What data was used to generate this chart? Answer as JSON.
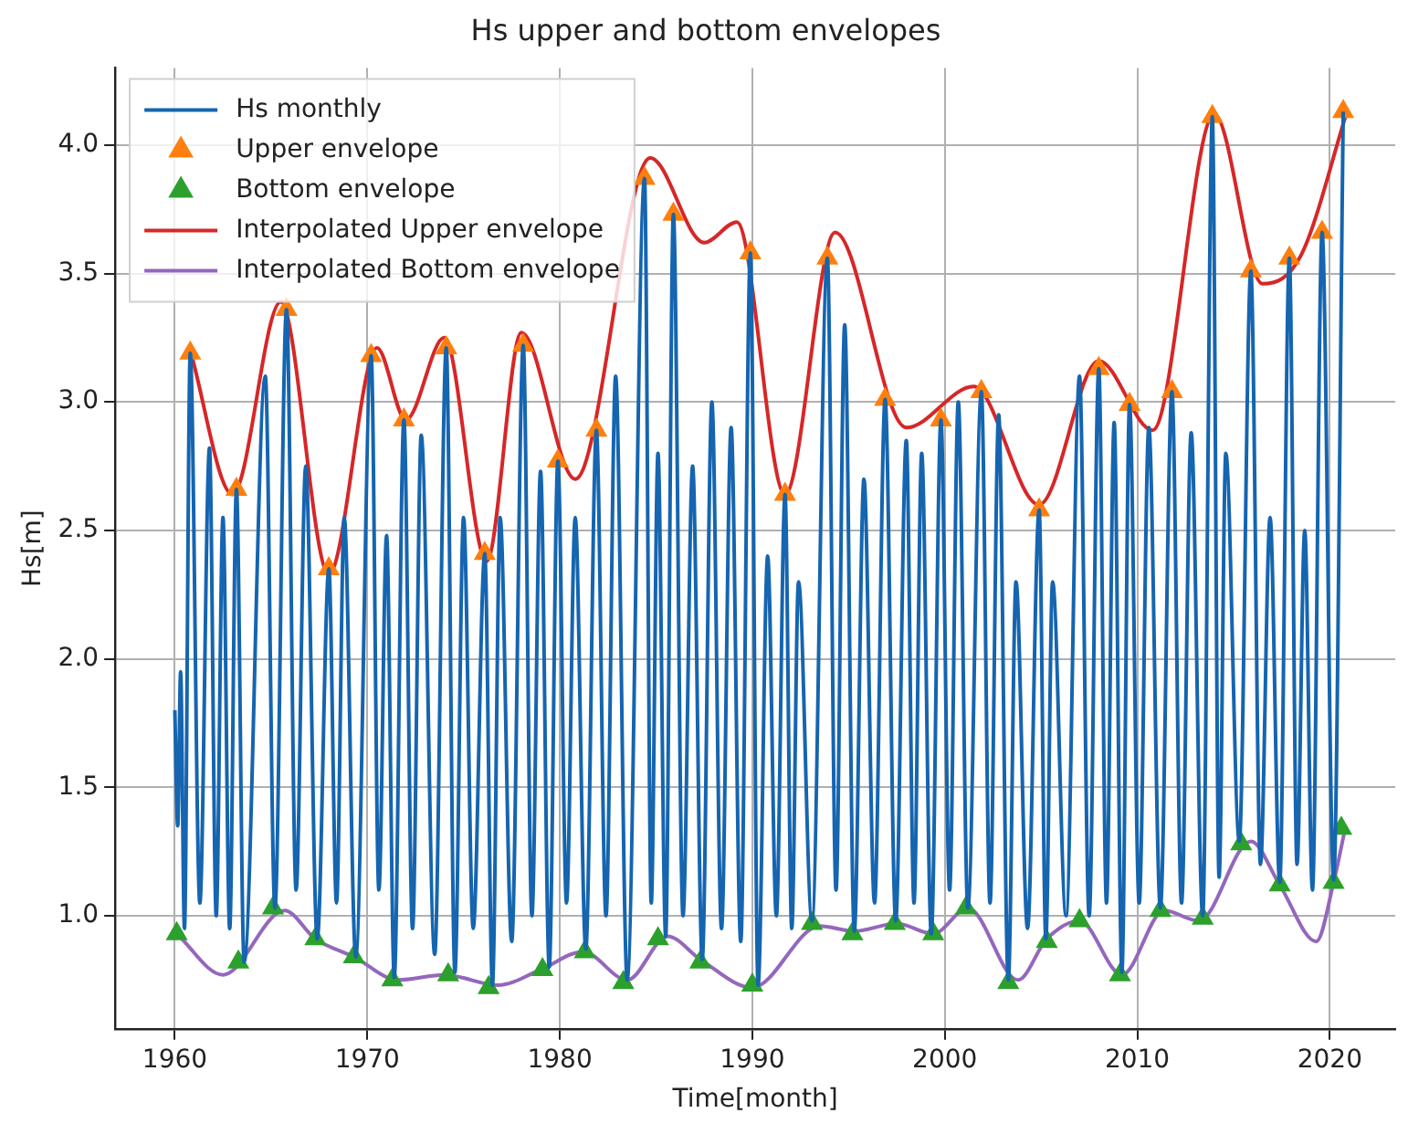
{
  "chart_data": {
    "type": "line",
    "title": "Hs upper and bottom envelopes",
    "xlabel": "Time[month]",
    "ylabel": "Hs[m]",
    "xlim": [
      1956.9,
      2023.4
    ],
    "ylim": [
      0.56,
      4.3
    ],
    "xticks": [
      1960,
      1970,
      1980,
      1990,
      2000,
      2010,
      2020
    ],
    "yticks": [
      {
        "value": 1,
        "label": "1.0"
      },
      {
        "value": 1.5,
        "label": "1.5"
      },
      {
        "value": 2,
        "label": "2.0"
      },
      {
        "value": 2.5,
        "label": "2.5"
      },
      {
        "value": 3,
        "label": "3.0"
      },
      {
        "value": 3.5,
        "label": "3.5"
      },
      {
        "value": 4,
        "label": "4.0"
      }
    ],
    "grid": true,
    "legend": "top left",
    "series": [
      {
        "name": "Hs monthly",
        "color": "#1565b0",
        "marker": "none",
        "x": [
          1960.0,
          1960.15,
          1960.3,
          1960.5,
          1960.8,
          1961.3,
          1961.8,
          1962.15,
          1962.5,
          1962.85,
          1963.2,
          1963.6,
          1964.7,
          1965.2,
          1965.8,
          1966.3,
          1966.8,
          1967.4,
          1968.0,
          1968.4,
          1968.8,
          1969.4,
          1970.2,
          1970.6,
          1971.0,
          1971.4,
          1971.9,
          1972.35,
          1972.8,
          1973.5,
          1974.1,
          1974.55,
          1975.0,
          1975.5,
          1976.1,
          1976.5,
          1976.9,
          1977.5,
          1978.1,
          1978.55,
          1979.0,
          1979.45,
          1979.9,
          1980.35,
          1980.8,
          1981.35,
          1981.9,
          1982.4,
          1982.9,
          1983.5,
          1984.4,
          1984.75,
          1985.1,
          1985.5,
          1985.9,
          1986.4,
          1986.9,
          1987.4,
          1987.9,
          1988.4,
          1988.9,
          1989.4,
          1989.9,
          1990.3,
          1990.8,
          1991.25,
          1991.7,
          1992.05,
          1992.4,
          1993.1,
          1993.9,
          1994.35,
          1994.8,
          1995.3,
          1995.8,
          1996.35,
          1996.9,
          1997.45,
          1998.0,
          1998.4,
          1998.8,
          1999.3,
          1999.8,
          2000.25,
          2000.7,
          2001.2,
          2001.9,
          2002.35,
          2002.8,
          2003.3,
          2003.7,
          2004.3,
          2004.9,
          2005.25,
          2005.6,
          2006.3,
          2007.0,
          2007.5,
          2008.0,
          2008.4,
          2008.8,
          2009.2,
          2009.6,
          2010.1,
          2010.6,
          2011.2,
          2011.8,
          2012.3,
          2012.8,
          2013.4,
          2013.9,
          2014.25,
          2014.6,
          2015.3,
          2015.9,
          2016.4,
          2016.9,
          2017.4,
          2017.9,
          2018.3,
          2018.7,
          2019.1,
          2019.6,
          2020.2,
          2020.7
        ],
        "values": [
          1.8,
          1.35,
          1.95,
          0.95,
          3.19,
          1.05,
          2.82,
          1.0,
          2.55,
          0.95,
          2.66,
          0.82,
          3.1,
          1.03,
          3.36,
          1.1,
          2.75,
          0.91,
          2.35,
          1.05,
          2.55,
          0.84,
          3.18,
          1.1,
          2.48,
          0.76,
          2.93,
          0.95,
          2.87,
          0.85,
          3.21,
          0.78,
          2.55,
          0.95,
          2.41,
          0.73,
          2.55,
          0.9,
          3.22,
          1.0,
          2.73,
          0.8,
          2.77,
          1.05,
          2.55,
          0.87,
          2.89,
          1.0,
          3.1,
          0.75,
          3.87,
          1.05,
          2.8,
          0.92,
          3.73,
          1.0,
          2.75,
          0.83,
          3.0,
          0.95,
          2.9,
          0.9,
          3.58,
          0.73,
          2.4,
          1.0,
          2.64,
          0.95,
          2.3,
          0.98,
          3.56,
          1.1,
          3.3,
          0.94,
          2.7,
          1.05,
          3.01,
          0.98,
          2.85,
          1.05,
          2.8,
          0.93,
          2.93,
          1.1,
          3.0,
          1.03,
          3.04,
          1.05,
          2.95,
          0.75,
          2.3,
          0.95,
          2.58,
          0.91,
          2.3,
          1.0,
          3.1,
          1.0,
          3.13,
          1.05,
          2.92,
          0.78,
          2.99,
          1.05,
          2.9,
          1.03,
          3.04,
          1.05,
          2.88,
          1.0,
          4.11,
          1.15,
          2.8,
          1.29,
          3.51,
          1.2,
          2.55,
          1.13,
          3.56,
          1.2,
          2.5,
          1.1,
          3.66,
          1.14,
          4.13
        ]
      },
      {
        "name": "Upper envelope",
        "type": "scatter",
        "color": "#ff7f0e",
        "marker": "triangle",
        "x": [
          1960.8,
          1963.2,
          1965.8,
          1968.0,
          1970.2,
          1971.9,
          1974.1,
          1976.1,
          1978.1,
          1979.9,
          1981.9,
          1984.4,
          1985.9,
          1989.9,
          1991.7,
          1993.9,
          1996.9,
          1999.8,
          2001.9,
          2004.9,
          2008.0,
          2009.6,
          2011.8,
          2013.9,
          2015.9,
          2017.9,
          2019.6,
          2020.7
        ],
        "values": [
          3.19,
          2.66,
          3.36,
          2.35,
          3.18,
          2.93,
          3.21,
          2.41,
          3.22,
          2.77,
          2.89,
          3.87,
          3.73,
          3.58,
          2.64,
          3.56,
          3.01,
          2.93,
          3.04,
          2.58,
          3.13,
          2.99,
          3.04,
          4.11,
          3.51,
          3.56,
          3.66,
          4.13
        ]
      },
      {
        "name": "Bottom envelope",
        "type": "scatter",
        "color": "#2ca02c",
        "marker": "triangle",
        "x": [
          1960.1,
          1963.3,
          1965.1,
          1967.3,
          1969.3,
          1971.3,
          1974.2,
          1976.3,
          1979.1,
          1981.3,
          1983.3,
          1985.1,
          1987.3,
          1990.0,
          1993.1,
          1995.2,
          1997.4,
          1999.4,
          2001.1,
          2003.3,
          2005.3,
          2007.0,
          2009.1,
          2011.2,
          2013.4,
          2015.4,
          2017.4,
          2020.2,
          2020.6
        ],
        "values": [
          0.93,
          0.82,
          1.03,
          0.91,
          0.84,
          0.75,
          0.77,
          0.72,
          0.79,
          0.86,
          0.74,
          0.91,
          0.82,
          0.73,
          0.97,
          0.93,
          0.97,
          0.93,
          1.03,
          0.74,
          0.9,
          0.98,
          0.77,
          1.02,
          0.99,
          1.28,
          1.12,
          1.13,
          1.34
        ]
      },
      {
        "name": "Interpolated Upper envelope",
        "color": "#d62728",
        "marker": "none",
        "x": [
          1960.8,
          1963.0,
          1965.5,
          1968.0,
          1970.5,
          1972.0,
          1974.0,
          1976.2,
          1978.0,
          1980.8,
          1984.7,
          1987.5,
          1989.2,
          1991.7,
          1994.3,
          1998.0,
          2001.5,
          2004.9,
          2008.0,
          2010.8,
          2014.0,
          2016.5,
          2018.5,
          2020.9
        ],
        "values": [
          3.2,
          2.64,
          3.39,
          2.33,
          3.21,
          2.93,
          3.25,
          2.38,
          3.27,
          2.7,
          3.95,
          3.62,
          3.7,
          2.64,
          3.66,
          2.9,
          3.06,
          2.6,
          3.16,
          2.89,
          4.12,
          3.46,
          3.57,
          4.13
        ]
      },
      {
        "name": "Interpolated Bottom envelope",
        "color": "#9467bd",
        "marker": "none",
        "x": [
          1960.1,
          1962.5,
          1965.7,
          1967.3,
          1969.3,
          1971.6,
          1974.0,
          1976.8,
          1979.0,
          1981.2,
          1983.5,
          1985.6,
          1987.3,
          1990.0,
          1993.5,
          1995.3,
          1997.5,
          1999.4,
          2001.2,
          2003.8,
          2005.3,
          2007.0,
          2009.2,
          2011.4,
          2013.2,
          2015.9,
          2017.4,
          2019.3,
          2020.2,
          2020.8
        ],
        "values": [
          0.93,
          0.77,
          1.02,
          0.91,
          0.84,
          0.75,
          0.77,
          0.73,
          0.79,
          0.86,
          0.75,
          0.92,
          0.83,
          0.72,
          0.96,
          0.94,
          0.97,
          0.93,
          1.03,
          0.75,
          0.91,
          0.98,
          0.77,
          1.02,
          0.98,
          1.29,
          1.12,
          0.9,
          1.13,
          1.34
        ]
      }
    ]
  }
}
